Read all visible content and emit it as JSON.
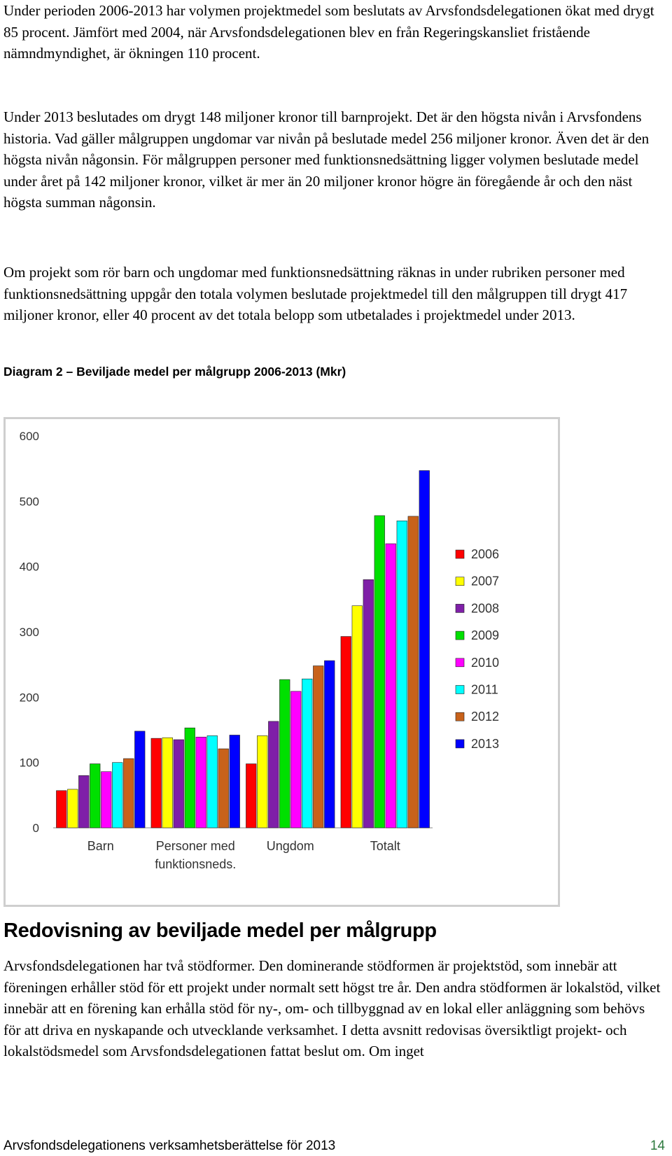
{
  "paragraphs": {
    "p1": "Under perioden 2006-2013 har volymen projektmedel som beslutats av Arvsfondsdelegationen ökat med drygt 85 procent. Jämfört med 2004, när Arvsfondsdelegationen blev en från Regeringskansliet fristående nämndmyndighet, är ökningen 110 procent.",
    "p2": "Under 2013 beslutades om drygt 148 miljoner kronor till barnprojekt. Det är den högsta nivån i Arvsfondens historia. Vad gäller målgruppen ungdomar var nivån på beslutade medel 256 miljoner kronor. Även det är den högsta nivån någonsin. För målgruppen personer med funktionsnedsättning ligger volymen beslutade medel under året på 142 miljoner kronor, vilket är mer än 20 miljoner kronor högre än föregående år och den näst högsta summan någonsin.",
    "p3": "Om projekt som rör barn och ungdomar med funktionsnedsättning räknas in under rubriken personer med funktionsnedsättning uppgår den totala volymen beslutade projektmedel till den målgruppen till drygt 417 miljoner kronor, eller 40 procent av det totala belopp som utbetalades i projektmedel under 2013.",
    "p4": "Arvsfondsdelegationen har två stödformer. Den dominerande stödformen är projektstöd, som innebär att föreningen erhåller stöd för ett projekt under normalt sett högst tre år. Den andra stödformen är lokalstöd, vilket innebär att en förening kan erhålla stöd för ny-, om- och tillbyggnad av en lokal eller anläggning som behövs för att driva en nyskapande och utvecklande verksamhet. I detta avsnitt redovisas översiktligt projekt- och lokalstödsmedel som Arvsfondsdelegationen fattat beslut om. Om inget"
  },
  "diagram_caption": "Diagram 2 – Beviljade medel per målgrupp 2006-2013 (Mkr)",
  "section_heading": "Redovisning av beviljade medel per målgrupp",
  "footer": {
    "title": "Arvsfondsdelegationens verksamhetsberättelse för 2013",
    "page_number": "14"
  },
  "chart_data": {
    "type": "bar",
    "title": "",
    "xlabel": "",
    "ylabel": "",
    "ylim": [
      0,
      600
    ],
    "yticks": [
      "0",
      "100",
      "200",
      "300",
      "400",
      "500",
      "600"
    ],
    "grid": false,
    "legend_position": "right",
    "categories": [
      [
        "Barn"
      ],
      [
        "Personer med",
        "funktionsneds."
      ],
      [
        "Ungdom"
      ],
      [
        "Totalt"
      ]
    ],
    "series": [
      {
        "name": "2006",
        "color": "#ff0000",
        "values": [
          57,
          137,
          98,
          293
        ]
      },
      {
        "name": "2007",
        "color": "#ffff00",
        "values": [
          59,
          138,
          141,
          340
        ]
      },
      {
        "name": "2008",
        "color": "#7f1fa8",
        "values": [
          80,
          135,
          163,
          380
        ]
      },
      {
        "name": "2009",
        "color": "#00e000",
        "values": [
          98,
          153,
          227,
          478
        ]
      },
      {
        "name": "2010",
        "color": "#ff00ff",
        "values": [
          86,
          139,
          209,
          435
        ]
      },
      {
        "name": "2011",
        "color": "#00ffff",
        "values": [
          100,
          141,
          228,
          470
        ]
      },
      {
        "name": "2012",
        "color": "#c8621a",
        "values": [
          106,
          121,
          248,
          477
        ]
      },
      {
        "name": "2013",
        "color": "#0000ff",
        "values": [
          148,
          142,
          256,
          547
        ]
      }
    ]
  }
}
